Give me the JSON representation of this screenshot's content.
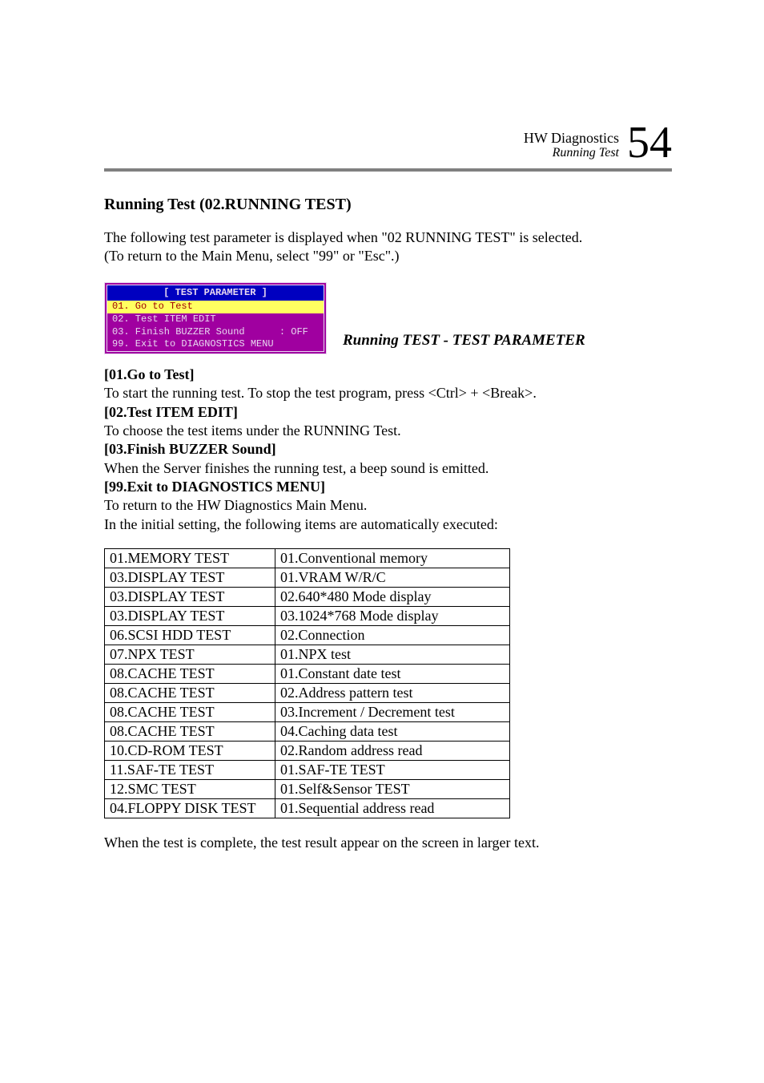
{
  "header": {
    "title": "HW Diagnostics",
    "subtitle": "Running Test",
    "page_number": "54"
  },
  "section_heading": "Running Test (02.RUNNING TEST)",
  "intro_line1": "The following test parameter is displayed  when \"02 RUNNING TEST\" is selected.",
  "intro_line2": "(To return to the Main Menu, select \"99\" or \"Esc\".)",
  "terminal": {
    "title": "[ TEST PARAMETER ]",
    "line1": "01. Go to Test",
    "line2": "02. Test ITEM EDIT",
    "line3": "03. Finish BUZZER Sound      : OFF",
    "line4": "99. Exit to DIAGNOSTICS MENU",
    "colors": {
      "box_bg": "#a000a0",
      "title_bg": "#0000c0",
      "text": "#e8d8f0",
      "highlight_bg": "#ffff60",
      "highlight_fg": "#a00000",
      "border": "#e8d8f0"
    }
  },
  "caption": "Running TEST - TEST PARAMETER",
  "items": [
    {
      "heading": "[01.Go to Test]",
      "desc": "To start the running test. To stop the test program, press <Ctrl> + <Break>."
    },
    {
      "heading": "[02.Test ITEM EDIT]",
      "desc": "To choose the test items under the RUNNING Test."
    },
    {
      "heading": "[03.Finish BUZZER Sound]",
      "desc": "When the Server finishes the running test, a beep sound is emitted."
    },
    {
      "heading": "[99.Exit to DIAGNOSTICS MENU]",
      "desc": "To return to the HW Diagnostics Main Menu."
    }
  ],
  "auto_line": "In the initial setting, the following items are automatically executed:",
  "table": {
    "rows": [
      [
        "01.MEMORY TEST",
        "01.Conventional memory"
      ],
      [
        "03.DISPLAY TEST",
        "01.VRAM W/R/C"
      ],
      [
        "03.DISPLAY TEST",
        "02.640*480 Mode display"
      ],
      [
        "03.DISPLAY TEST",
        "03.1024*768 Mode display"
      ],
      [
        "06.SCSI HDD TEST",
        "02.Connection"
      ],
      [
        "07.NPX TEST",
        "01.NPX test"
      ],
      [
        "08.CACHE TEST",
        "01.Constant date test"
      ],
      [
        "08.CACHE TEST",
        "02.Address pattern test"
      ],
      [
        "08.CACHE TEST",
        "03.Increment / Decrement test"
      ],
      [
        "08.CACHE TEST",
        "04.Caching data test"
      ],
      [
        "10.CD-ROM TEST",
        "02.Random address read"
      ],
      [
        "11.SAF-TE TEST",
        "01.SAF-TE TEST"
      ],
      [
        "12.SMC TEST",
        "01.Self&Sensor TEST"
      ],
      [
        "04.FLOPPY DISK TEST",
        "01.Sequential address read"
      ]
    ]
  },
  "closing": "When the test is complete, the test result appear on the screen in larger text."
}
